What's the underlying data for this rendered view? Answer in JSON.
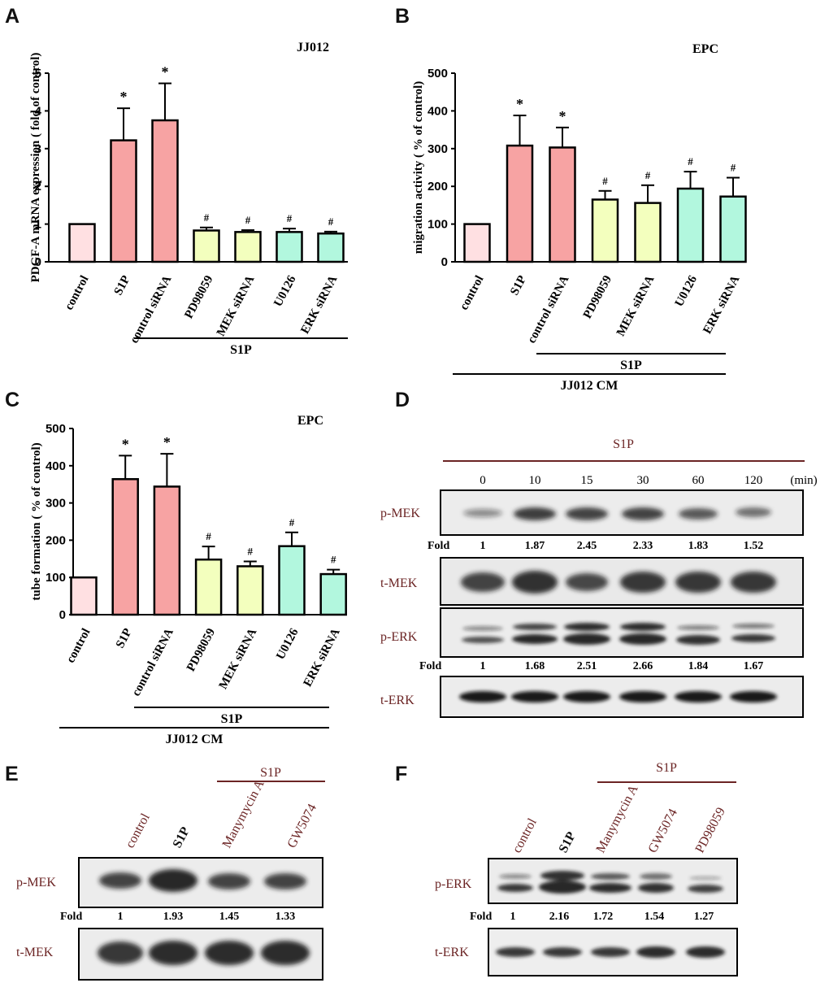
{
  "chart_data": [
    {
      "panel": "A",
      "type": "bar",
      "title": "JJ012",
      "ylabel": "PDGF-A mRNA expression ( fold of control)",
      "ylim": [
        0,
        5
      ],
      "yticks": [
        0,
        1,
        2,
        3,
        4,
        5
      ],
      "categories": [
        "control",
        "S1P",
        "control siRNA",
        "PD98059",
        "MEK siRNA",
        "U0126",
        "ERK siRNA"
      ],
      "values": [
        1.0,
        3.22,
        3.75,
        0.83,
        0.79,
        0.79,
        0.75
      ],
      "errors": [
        0,
        0.85,
        0.98,
        0.08,
        0.05,
        0.09,
        0.05
      ],
      "marks": [
        "",
        "*",
        "*",
        "#",
        "#",
        "#",
        "#"
      ],
      "bracket1": "S1P"
    },
    {
      "panel": "B",
      "type": "bar",
      "title": "EPC",
      "ylabel": "migration activity ( % of control)",
      "ylim": [
        0,
        500
      ],
      "yticks": [
        0,
        100,
        200,
        300,
        400,
        500
      ],
      "categories": [
        "control",
        "S1P",
        "control siRNA",
        "PD98059",
        "MEK siRNA",
        "U0126",
        "ERK siRNA"
      ],
      "values": [
        100,
        308,
        303,
        165,
        156,
        194,
        173
      ],
      "errors": [
        0,
        80,
        53,
        23,
        47,
        45,
        50
      ],
      "marks": [
        "",
        "*",
        "*",
        "#",
        "#",
        "#",
        "#"
      ],
      "bracket1": "S1P",
      "bracket2": "JJ012 CM"
    },
    {
      "panel": "C",
      "type": "bar",
      "title": "EPC",
      "ylabel": "tube formation ( % of control)",
      "ylim": [
        0,
        500
      ],
      "yticks": [
        0,
        100,
        200,
        300,
        400,
        500
      ],
      "categories": [
        "control",
        "S1P",
        "control siRNA",
        "PD98059",
        "MEK siRNA",
        "U0126",
        "ERK siRNA"
      ],
      "values": [
        100,
        364,
        344,
        148,
        130,
        184,
        109
      ],
      "errors": [
        0,
        63,
        88,
        35,
        13,
        37,
        12
      ],
      "marks": [
        "",
        "*",
        "*",
        "#",
        "#",
        "#",
        "#"
      ],
      "bracket1": "S1P",
      "bracket2": "JJ012 CM"
    }
  ],
  "panels": {
    "a": "A",
    "b": "B",
    "c": "C",
    "d": "D",
    "e": "E",
    "f": "F"
  },
  "colors": [
    "#ffe0e2",
    "#f7a3a3",
    "#f7a3a3",
    "#f3ffbe",
    "#f3ffbe",
    "#b2f7de",
    "#b2f7de"
  ],
  "blot_d": {
    "treatment": "S1P",
    "unit": "(min)",
    "times": [
      "0",
      "10",
      "15",
      "30",
      "60",
      "120"
    ],
    "fold_label": "Fold",
    "rows": [
      {
        "name": "p-MEK",
        "folds": [
          "1",
          "1.87",
          "2.45",
          "2.33",
          "1.83",
          "1.52"
        ]
      },
      {
        "name": "t-MEK"
      },
      {
        "name": "p-ERK",
        "folds": [
          "1",
          "1.68",
          "2.51",
          "2.66",
          "1.84",
          "1.67"
        ]
      },
      {
        "name": "t-ERK"
      }
    ]
  },
  "blot_e": {
    "treatment": "S1P",
    "fold_label": "Fold",
    "lanes": [
      "control",
      "S1P",
      "Manymycin A",
      "GW5074"
    ],
    "rows": [
      {
        "name": "p-MEK",
        "folds": [
          "1",
          "1.93",
          "1.45",
          "1.33"
        ]
      },
      {
        "name": "t-MEK"
      }
    ]
  },
  "blot_f": {
    "treatment": "S1P",
    "fold_label": "Fold",
    "lanes": [
      "control",
      "S1P",
      "Manymycin A",
      "GW5074",
      "PD98059"
    ],
    "rows": [
      {
        "name": "p-ERK",
        "folds": [
          "1",
          "2.16",
          "1.72",
          "1.54",
          "1.27"
        ]
      },
      {
        "name": "t-ERK"
      }
    ]
  }
}
